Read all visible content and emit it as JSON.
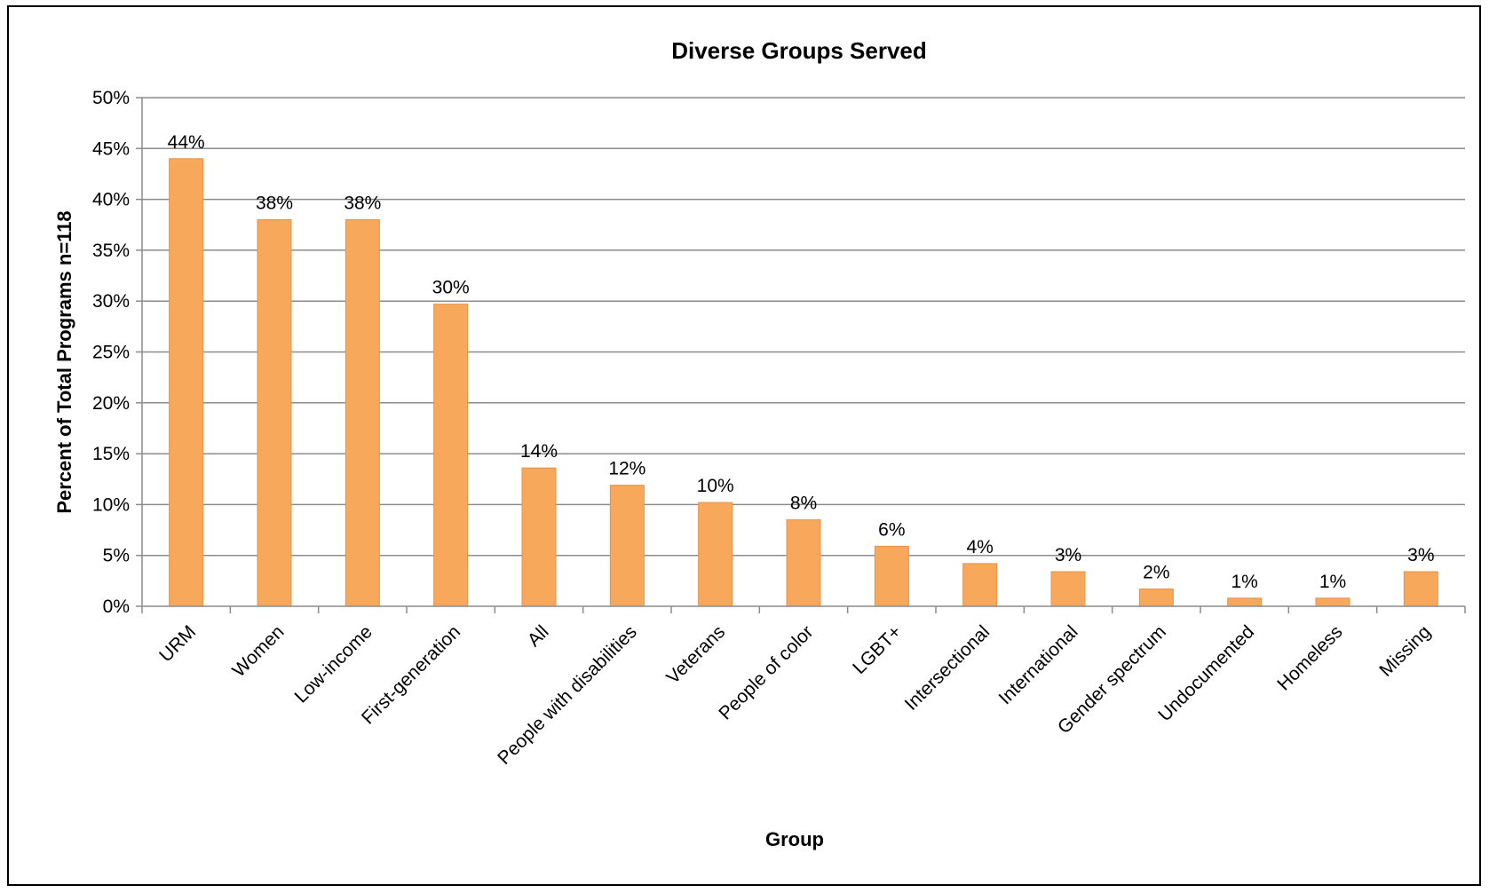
{
  "chart_data": {
    "type": "bar",
    "title": "Diverse Groups Served",
    "xlabel": "Group",
    "ylabel": "Percent of Total Programs n=118",
    "ylim": [
      0,
      50
    ],
    "y_ticks": [
      "0%",
      "5%",
      "10%",
      "15%",
      "20%",
      "25%",
      "30%",
      "35%",
      "40%",
      "45%",
      "50%"
    ],
    "grid": true,
    "legend": "none",
    "categories": [
      "URM",
      "Women",
      "Low-income",
      "First-generation",
      "All",
      "People with disabilities",
      "Veterans",
      "People of color",
      "LGBT+",
      "Intersectional",
      "International",
      "Gender spectrum",
      "Undocumented",
      "Homeless",
      "Missing"
    ],
    "values": [
      44,
      38,
      38,
      29.7,
      13.6,
      11.9,
      10.2,
      8.5,
      5.9,
      4.2,
      3.4,
      1.7,
      0.8,
      0.8,
      3.4
    ],
    "data_labels": [
      "44%",
      "38%",
      "38%",
      "30%",
      "14%",
      "12%",
      "10%",
      "8%",
      "6%",
      "4%",
      "3%",
      "2%",
      "1%",
      "1%",
      "3%"
    ],
    "colors": {
      "bar": "#F7A85B",
      "bar_edge": "#E8914A",
      "grid": "#8C8C8C",
      "axis": "#8C8C8C"
    }
  }
}
